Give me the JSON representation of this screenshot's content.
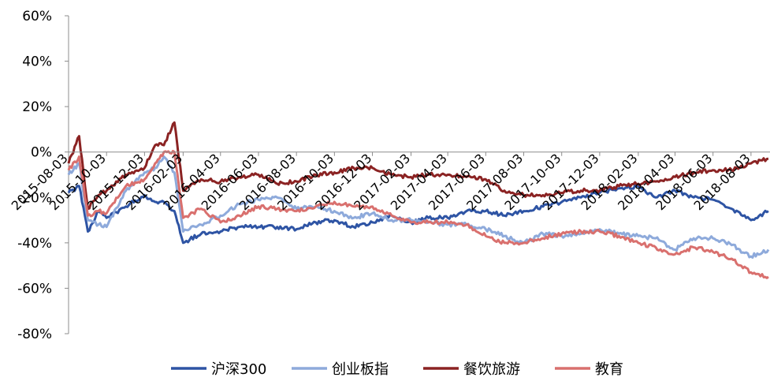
{
  "chart_data": {
    "type": "line",
    "title": "",
    "xlabel": "",
    "ylabel": "",
    "ylim": [
      -80,
      60
    ],
    "yticks": [
      "60%",
      "40%",
      "20%",
      "0%",
      "-20%",
      "-40%",
      "-60%",
      "-80%"
    ],
    "ytick_values": [
      60,
      40,
      20,
      0,
      -20,
      -40,
      -60,
      -80
    ],
    "grid": false,
    "legend_position": "bottom",
    "x_tick_labels": [
      "2015-08-03",
      "2015-10-03",
      "2015-12-03",
      "2016-02-03",
      "2016-04-03",
      "2016-06-03",
      "2016-08-03",
      "2016-10-03",
      "2016-12-03",
      "2017-02-03",
      "2017-04-03",
      "2017-06-03",
      "2017-08-03",
      "2017-10-03",
      "2017-12-03",
      "2018-02-03",
      "2018-04-03",
      "2018-06-03",
      "2018-08-03"
    ],
    "x": [
      "2015-08-03",
      "2015-08-20",
      "2015-09-03",
      "2015-09-20",
      "2015-10-03",
      "2015-11-03",
      "2015-12-03",
      "2015-12-20",
      "2016-01-03",
      "2016-01-20",
      "2016-02-03",
      "2016-03-03",
      "2016-04-03",
      "2016-05-03",
      "2016-06-03",
      "2016-07-03",
      "2016-08-03",
      "2016-09-03",
      "2016-10-03",
      "2016-11-03",
      "2016-12-03",
      "2017-01-03",
      "2017-02-03",
      "2017-03-03",
      "2017-04-03",
      "2017-05-03",
      "2017-06-03",
      "2017-07-03",
      "2017-08-03",
      "2017-09-03",
      "2017-10-03",
      "2017-11-03",
      "2017-12-03",
      "2018-01-03",
      "2018-02-03",
      "2018-03-03",
      "2018-04-03",
      "2018-05-03",
      "2018-06-03",
      "2018-07-03",
      "2018-08-03",
      "2018-08-31"
    ],
    "series": [
      {
        "name": "沪深300",
        "color": "#2E54A4",
        "values": [
          -18,
          -15,
          -35,
          -26,
          -29,
          -24,
          -19,
          -22,
          -22,
          -26,
          -40,
          -36,
          -35,
          -33,
          -33,
          -33,
          -34,
          -31,
          -30,
          -33,
          -31,
          -28,
          -31,
          -29,
          -29,
          -26,
          -26,
          -28,
          -26,
          -24,
          -22,
          -20,
          -18,
          -16,
          -15,
          -20,
          -17,
          -20,
          -21,
          -25,
          -30,
          -26
        ]
      },
      {
        "name": "创业板指",
        "color": "#8EAADB",
        "values": [
          -10,
          -5,
          -30,
          -32,
          -33,
          -17,
          -9,
          -7,
          -2,
          -9,
          -35,
          -32,
          -28,
          -23,
          -21,
          -20,
          -25,
          -24,
          -26,
          -29,
          -27,
          -30,
          -30,
          -31,
          -32,
          -32,
          -34,
          -37,
          -40,
          -36,
          -37,
          -36,
          -34,
          -36,
          -37,
          -38,
          -43,
          -38,
          -38,
          -41,
          -46,
          -43
        ]
      },
      {
        "name": "餐饮旅游",
        "color": "#8B2323",
        "values": [
          -5,
          7,
          -25,
          -19,
          -17,
          -10,
          -7,
          3,
          3,
          13,
          -17,
          -12,
          -13,
          -11,
          -10,
          -14,
          -13,
          -10,
          -9,
          -7,
          -7,
          -10,
          -11,
          -10,
          -10,
          -11,
          -12,
          -17,
          -19,
          -19,
          -18,
          -17,
          -17,
          -15,
          -14,
          -13,
          -11,
          -9,
          -8,
          -8,
          -5,
          -3
        ]
      },
      {
        "name": "教育",
        "color": "#D9706E",
        "values": [
          -8,
          -2,
          -28,
          -26,
          -27,
          -15,
          -12,
          -5,
          0,
          0,
          -29,
          -25,
          -31,
          -28,
          -24,
          -25,
          -26,
          -24,
          -22,
          -24,
          -24,
          -28,
          -31,
          -31,
          -31,
          -32,
          -37,
          -40,
          -40,
          -38,
          -36,
          -35,
          -35,
          -37,
          -40,
          -42,
          -45,
          -42,
          -44,
          -47,
          -53,
          -55
        ]
      }
    ]
  }
}
